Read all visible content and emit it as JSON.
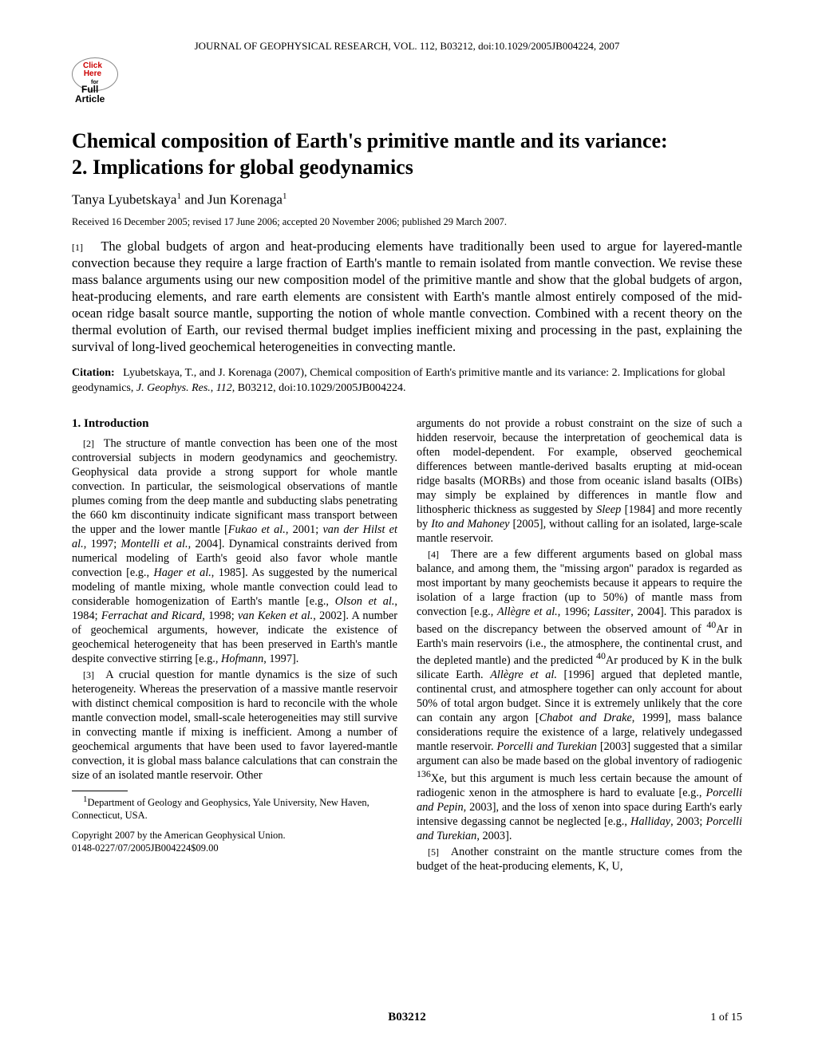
{
  "journal_header": "JOURNAL OF GEOPHYSICAL RESEARCH, VOL. 112, B03212, doi:10.1029/2005JB004224, 2007",
  "badge": {
    "click": "Click",
    "here": "Here",
    "for": "for",
    "full": "Full",
    "article": "Article"
  },
  "title_line1": "Chemical composition of Earth's primitive mantle and its variance:",
  "title_line2": "2. Implications for global geodynamics",
  "authors_pre": "Tanya Lyubetskaya",
  "authors_mid": " and Jun Korenaga",
  "author_sup": "1",
  "dates": "Received 16 December 2005; revised 17 June 2006; accepted 20 November 2006; published 29 March 2007.",
  "abstract_num": "[1]",
  "abstract": "The global budgets of argon and heat-producing elements have traditionally been used to argue for layered-mantle convection because they require a large fraction of Earth's mantle to remain isolated from mantle convection. We revise these mass balance arguments using our new composition model of the primitive mantle and show that the global budgets of argon, heat-producing elements, and rare earth elements are consistent with Earth's mantle almost entirely composed of the mid-ocean ridge basalt source mantle, supporting the notion of whole mantle convection. Combined with a recent theory on the thermal evolution of Earth, our revised thermal budget implies inefficient mixing and processing in the past, explaining the survival of long-lived geochemical heterogeneities in convecting mantle.",
  "citation_label": "Citation:",
  "citation_text_1": "Lyubetskaya, T., and J. Korenaga (2007), Chemical composition of Earth's primitive mantle and its variance: 2. Implications for global geodynamics, ",
  "citation_journal": "J. Geophys. Res.",
  "citation_text_2": ", ",
  "citation_vol": "112",
  "citation_text_3": ", B03212, doi:10.1029/2005JB004224.",
  "section1_heading": "1.   Introduction",
  "p2_num": "[2]",
  "p2": "The structure of mantle convection has been one of the most controversial subjects in modern geodynamics and geochemistry. Geophysical data provide a strong support for whole mantle convection. In particular, the seismological observations of mantle plumes coming from the deep mantle and subducting slabs penetrating the 660 km discontinuity indicate significant mass transport between the upper and the lower mantle [Fukao et al., 2001; van der Hilst et al., 1997; Montelli et al., 2004]. Dynamical constraints derived from numerical modeling of Earth's geoid also favor whole mantle convection [e.g., Hager et al., 1985]. As suggested by the numerical modeling of mantle mixing, whole mantle convection could lead to considerable homogenization of Earth's mantle [e.g., Olson et al., 1984; Ferrachat and Ricard, 1998; van Keken et al., 2002]. A number of geochemical arguments, however, indicate the existence of geochemical heterogeneity that has been preserved in Earth's mantle despite convective stirring [e.g., Hofmann, 1997].",
  "p3_num": "[3]",
  "p3": "A crucial question for mantle dynamics is the size of such heterogeneity. Whereas the preservation of a massive mantle reservoir with distinct chemical composition is hard to reconcile with the whole mantle convection model, small-scale heterogeneities may still survive in convecting mantle if mixing is inefficient. Among a number of geochemical arguments that have been used to favor layered-mantle convection, it is global mass balance calculations that can constrain the size of an isolated mantle reservoir. Other",
  "footnote_sup": "1",
  "footnote": "Department of Geology and Geophysics, Yale University, New Haven, Connecticut, USA.",
  "copyright1": "Copyright 2007 by the American Geophysical Union.",
  "copyright2": "0148-0227/07/2005JB004224$09.00",
  "col2_p1": "arguments do not provide a robust constraint on the size of such a hidden reservoir, because the interpretation of geochemical data is often model-dependent. For example, observed geochemical differences between mantle-derived basalts erupting at mid-ocean ridge basalts (MORBs) and those from oceanic island basalts (OIBs) may simply be explained by differences in mantle flow and lithospheric thickness as suggested by Sleep [1984] and more recently by Ito and Mahoney [2005], without calling for an isolated, large-scale mantle reservoir.",
  "p4_num": "[4]",
  "p4": "There are a few different arguments based on global mass balance, and among them, the ''missing argon'' paradox is regarded as most important by many geochemists because it appears to require the isolation of a large fraction (up to 50%) of mantle mass from convection [e.g., Allègre et al., 1996; Lassiter, 2004]. This paradox is based on the discrepancy between the observed amount of ⁴⁰Ar in Earth's main reservoirs (i.e., the atmosphere, the continental crust, and the depleted mantle) and the predicted ⁴⁰Ar produced by K in the bulk silicate Earth. Allègre et al. [1996] argued that depleted mantle, continental crust, and atmosphere together can only account for about 50% of total argon budget. Since it is extremely unlikely that the core can contain any argon [Chabot and Drake, 1999], mass balance considerations require the existence of a large, relatively undegassed mantle reservoir. Porcelli and Turekian [2003] suggested that a similar argument can also be made based on the global inventory of radiogenic ¹³⁶Xe, but this argument is much less certain because the amount of radiogenic xenon in the atmosphere is hard to evaluate [e.g., Porcelli and Pepin, 2003], and the loss of xenon into space during Earth's early intensive degassing cannot be neglected [e.g., Halliday, 2003; Porcelli and Turekian, 2003].",
  "p5_num": "[5]",
  "p5": "Another constraint on the mantle structure comes from the budget of the heat-producing elements, K, U,",
  "footer_id": "B03212",
  "footer_page": "1 of 15"
}
